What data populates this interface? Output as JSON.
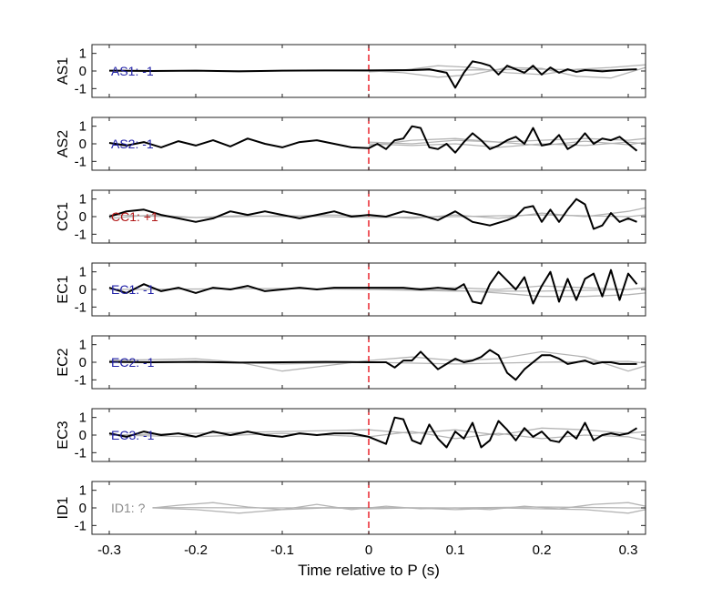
{
  "figure": {
    "xlabel": "Time relative to P (s)",
    "x_ticks": [
      "-0.3",
      "-0.2",
      "-0.1",
      "0",
      "0.1",
      "0.2",
      "0.3"
    ]
  },
  "colors": {
    "trace": "#000000",
    "gray_trace": "#b4b4b4",
    "marker": "#e8141c",
    "label_negative": "#2323a8",
    "label_positive": "#b01414",
    "label_unknown": "#8c8c8c"
  },
  "chart_data": [
    {
      "type": "line",
      "ylabel": "AS1",
      "label": "AS1: -1",
      "polarity": "negative",
      "xlim": [
        -0.32,
        0.32
      ],
      "ylim": [
        -1.5,
        1.5
      ],
      "y_ticks": [
        "1",
        "0",
        "-1"
      ],
      "p_marker_x": 0,
      "series": [
        {
          "x": [
            -0.3,
            -0.25,
            -0.2,
            -0.15,
            -0.1,
            -0.05,
            0,
            0.05,
            0.07,
            0.09,
            0.1,
            0.11,
            0.12,
            0.13,
            0.14,
            0.15,
            0.16,
            0.17,
            0.18,
            0.19,
            0.2,
            0.21,
            0.22,
            0.23,
            0.24,
            0.25,
            0.26,
            0.27,
            0.28,
            0.29,
            0.3,
            0.31
          ],
          "y": [
            0.02,
            0,
            0.02,
            -0.02,
            0.02,
            0.03,
            0.03,
            0.05,
            0.1,
            -0.1,
            -0.95,
            -0.1,
            0.55,
            0.45,
            0.3,
            -0.2,
            0.3,
            0.1,
            -0.1,
            0.3,
            -0.2,
            0.2,
            -0.1,
            0.1,
            -0.05,
            0.05,
            0.02,
            -0.02,
            0.02,
            0.05,
            0.08,
            0.1
          ]
        }
      ],
      "gray_traces": [
        {
          "x": [
            0.0,
            0.04,
            0.08,
            0.12,
            0.16,
            0.2,
            0.24,
            0.28,
            0.32
          ],
          "y": [
            -0.05,
            0.05,
            0.3,
            0.2,
            -0.1,
            -0.2,
            0.1,
            0.2,
            0.35
          ]
        },
        {
          "x": [
            0.0,
            0.04,
            0.08,
            0.12,
            0.16,
            0.2,
            0.24,
            0.28,
            0.32
          ],
          "y": [
            0.02,
            -0.1,
            -0.35,
            -0.2,
            0.2,
            0.15,
            -0.3,
            -0.4,
            0.2
          ]
        },
        {
          "x": [
            -0.3,
            -0.1,
            0.0,
            0.1,
            0.2,
            0.3
          ],
          "y": [
            0.0,
            0.02,
            0.0,
            0.05,
            0.1,
            0.05
          ]
        }
      ]
    },
    {
      "type": "line",
      "ylabel": "AS2",
      "label": "AS2: -1",
      "polarity": "negative",
      "xlim": [
        -0.32,
        0.32
      ],
      "ylim": [
        -1.5,
        1.5
      ],
      "y_ticks": [
        "1",
        "0",
        "-1"
      ],
      "p_marker_x": 0,
      "series": [
        {
          "x": [
            -0.3,
            -0.28,
            -0.26,
            -0.24,
            -0.22,
            -0.2,
            -0.18,
            -0.16,
            -0.14,
            -0.12,
            -0.1,
            -0.08,
            -0.06,
            -0.04,
            -0.02,
            0,
            0.01,
            0.02,
            0.03,
            0.04,
            0.05,
            0.06,
            0.07,
            0.08,
            0.09,
            0.1,
            0.11,
            0.12,
            0.13,
            0.14,
            0.15,
            0.16,
            0.17,
            0.18,
            0.19,
            0.2,
            0.21,
            0.22,
            0.23,
            0.24,
            0.25,
            0.26,
            0.27,
            0.28,
            0.29,
            0.3,
            0.31
          ],
          "y": [
            0.05,
            -0.1,
            0.1,
            -0.2,
            0.15,
            -0.1,
            0.2,
            -0.15,
            0.3,
            0.0,
            -0.2,
            0.1,
            0.2,
            0.0,
            -0.2,
            -0.25,
            0.0,
            -0.3,
            0.2,
            0.3,
            1.0,
            0.9,
            -0.2,
            -0.3,
            0.0,
            -0.5,
            0.1,
            0.6,
            0.2,
            -0.3,
            -0.1,
            0.2,
            0.4,
            0.0,
            0.9,
            -0.1,
            0.0,
            0.5,
            -0.3,
            0.0,
            0.6,
            0.0,
            0.3,
            0.2,
            0.4,
            0.0,
            -0.4
          ]
        }
      ],
      "gray_traces": [
        {
          "x": [
            0.0,
            0.05,
            0.1,
            0.15,
            0.2,
            0.25,
            0.3,
            0.32
          ],
          "y": [
            -0.1,
            0.2,
            0.3,
            0.1,
            0.2,
            0.3,
            0.2,
            0.3
          ]
        },
        {
          "x": [
            0.0,
            0.05,
            0.1,
            0.15,
            0.2,
            0.25,
            0.3,
            0.32
          ],
          "y": [
            0.0,
            -0.1,
            0.0,
            -0.2,
            0.0,
            -0.1,
            0.1,
            0.0
          ]
        },
        {
          "x": [
            0.0,
            0.05,
            0.1,
            0.15,
            0.2,
            0.25,
            0.3,
            0.32
          ],
          "y": [
            0.1,
            0.0,
            0.2,
            0.1,
            -0.1,
            0.15,
            -0.05,
            0.1
          ]
        }
      ]
    },
    {
      "type": "line",
      "ylabel": "CC1",
      "label": "CC1: +1",
      "polarity": "positive",
      "xlim": [
        -0.32,
        0.32
      ],
      "ylim": [
        -1.5,
        1.5
      ],
      "y_ticks": [
        "1",
        "0",
        "-1"
      ],
      "p_marker_x": 0,
      "series": [
        {
          "x": [
            -0.3,
            -0.28,
            -0.26,
            -0.24,
            -0.22,
            -0.2,
            -0.18,
            -0.16,
            -0.14,
            -0.12,
            -0.1,
            -0.08,
            -0.06,
            -0.04,
            -0.02,
            0,
            0.02,
            0.04,
            0.06,
            0.08,
            0.1,
            0.12,
            0.14,
            0.16,
            0.17,
            0.18,
            0.19,
            0.2,
            0.21,
            0.22,
            0.23,
            0.24,
            0.25,
            0.26,
            0.27,
            0.28,
            0.29,
            0.3,
            0.31
          ],
          "y": [
            0.0,
            0.3,
            0.4,
            0.1,
            -0.1,
            -0.3,
            -0.1,
            0.3,
            0.1,
            0.3,
            0.1,
            -0.1,
            0.1,
            0.3,
            0.0,
            0.1,
            0.0,
            0.3,
            0.1,
            -0.2,
            0.3,
            -0.3,
            -0.5,
            -0.2,
            0.0,
            0.5,
            0.6,
            -0.3,
            0.4,
            -0.3,
            0.4,
            1.0,
            0.7,
            -0.7,
            -0.5,
            0.2,
            -0.3,
            -0.1,
            -0.3
          ]
        }
      ],
      "gray_traces": [
        {
          "x": [
            -0.3,
            -0.25,
            -0.2,
            -0.15,
            -0.1,
            -0.05,
            0.0,
            0.05,
            0.1,
            0.15,
            0.2,
            0.25,
            0.3,
            0.32
          ],
          "y": [
            -0.1,
            0.1,
            -0.05,
            0.05,
            0.0,
            0.1,
            0.05,
            -0.1,
            0.1,
            -0.1,
            0.2,
            0.0,
            0.3,
            0.5
          ]
        },
        {
          "x": [
            -0.3,
            -0.2,
            -0.1,
            0.0,
            0.1,
            0.2,
            0.3,
            0.32
          ],
          "y": [
            0.1,
            -0.05,
            0.05,
            -0.05,
            0.0,
            0.1,
            0.0,
            0.1
          ]
        }
      ]
    },
    {
      "type": "line",
      "ylabel": "EC1",
      "label": "EC1: -1",
      "polarity": "negative",
      "xlim": [
        -0.32,
        0.32
      ],
      "ylim": [
        -1.5,
        1.5
      ],
      "y_ticks": [
        "1",
        "0",
        "-1"
      ],
      "p_marker_x": 0,
      "series": [
        {
          "x": [
            -0.3,
            -0.28,
            -0.26,
            -0.24,
            -0.22,
            -0.2,
            -0.18,
            -0.16,
            -0.14,
            -0.12,
            -0.1,
            -0.08,
            -0.06,
            -0.04,
            -0.02,
            0,
            0.02,
            0.04,
            0.06,
            0.08,
            0.1,
            0.11,
            0.12,
            0.13,
            0.14,
            0.15,
            0.16,
            0.17,
            0.18,
            0.19,
            0.2,
            0.21,
            0.22,
            0.23,
            0.24,
            0.25,
            0.26,
            0.27,
            0.28,
            0.29,
            0.3,
            0.31
          ],
          "y": [
            0.1,
            -0.2,
            0.3,
            -0.1,
            0.1,
            -0.2,
            0.1,
            0.0,
            0.2,
            -0.1,
            0.0,
            0.1,
            0.0,
            0.1,
            0.1,
            0.1,
            0.1,
            0.1,
            0.0,
            0.1,
            0.0,
            0.3,
            -0.7,
            -0.8,
            0.3,
            1.0,
            0.5,
            0.0,
            0.7,
            -0.8,
            0.2,
            1.0,
            -0.7,
            0.6,
            -0.6,
            0.6,
            0.9,
            -0.4,
            1.1,
            -0.6,
            0.9,
            0.3
          ]
        }
      ],
      "gray_traces": [
        {
          "x": [
            0.0,
            0.1,
            0.15,
            0.2,
            0.25,
            0.3,
            0.32
          ],
          "y": [
            0.05,
            -0.05,
            -0.2,
            -0.4,
            -0.4,
            -0.3,
            -0.2
          ]
        },
        {
          "x": [
            0.0,
            0.1,
            0.15,
            0.2,
            0.25,
            0.3,
            0.32
          ],
          "y": [
            0.0,
            0.1,
            0.0,
            0.2,
            0.1,
            0.0,
            0.1
          ]
        },
        {
          "x": [
            -0.3,
            -0.1,
            0.0,
            0.1,
            0.2,
            0.3,
            0.32
          ],
          "y": [
            0.0,
            0.05,
            0.0,
            -0.1,
            -0.1,
            0.0,
            0.1
          ]
        }
      ]
    },
    {
      "type": "line",
      "ylabel": "EC2",
      "label": "EC2: -1",
      "polarity": "negative",
      "xlim": [
        -0.32,
        0.32
      ],
      "ylim": [
        -1.5,
        1.5
      ],
      "y_ticks": [
        "1",
        "0",
        "-1"
      ],
      "p_marker_x": 0,
      "series": [
        {
          "x": [
            -0.3,
            -0.25,
            -0.2,
            -0.15,
            -0.1,
            -0.05,
            0,
            0.02,
            0.03,
            0.04,
            0.05,
            0.06,
            0.07,
            0.08,
            0.09,
            0.1,
            0.11,
            0.12,
            0.13,
            0.14,
            0.15,
            0.16,
            0.17,
            0.18,
            0.19,
            0.2,
            0.21,
            0.22,
            0.23,
            0.24,
            0.25,
            0.26,
            0.27,
            0.28,
            0.29,
            0.3,
            0.31
          ],
          "y": [
            0.02,
            0.0,
            0.02,
            -0.02,
            0.0,
            0.02,
            0.0,
            0.0,
            -0.3,
            0.1,
            0.1,
            0.6,
            0.1,
            -0.4,
            -0.1,
            0.2,
            0.0,
            0.1,
            0.3,
            0.7,
            0.4,
            -0.6,
            -1.0,
            -0.4,
            0.0,
            0.4,
            0.4,
            0.2,
            -0.1,
            0.0,
            0.1,
            -0.1,
            0.0,
            0.0,
            -0.1,
            -0.1,
            -0.1
          ]
        }
      ],
      "gray_traces": [
        {
          "x": [
            -0.3,
            -0.2,
            -0.15,
            -0.1,
            -0.05,
            0.0,
            0.05,
            0.1,
            0.15,
            0.2,
            0.25,
            0.3,
            0.32
          ],
          "y": [
            0.1,
            0.2,
            0.0,
            -0.5,
            -0.2,
            0.1,
            0.3,
            0.1,
            0.2,
            0.6,
            0.3,
            -0.5,
            -0.2
          ]
        },
        {
          "x": [
            -0.3,
            -0.2,
            -0.1,
            0.0,
            0.1,
            0.2,
            0.3,
            0.32
          ],
          "y": [
            0.0,
            0.05,
            -0.1,
            0.0,
            -0.1,
            0.0,
            0.05,
            -0.05
          ]
        }
      ]
    },
    {
      "type": "line",
      "ylabel": "EC3",
      "label": "EC3: -1",
      "polarity": "negative",
      "xlim": [
        -0.32,
        0.32
      ],
      "ylim": [
        -1.5,
        1.5
      ],
      "y_ticks": [
        "1",
        "0",
        "-1"
      ],
      "p_marker_x": 0,
      "series": [
        {
          "x": [
            -0.3,
            -0.28,
            -0.26,
            -0.24,
            -0.22,
            -0.2,
            -0.18,
            -0.16,
            -0.14,
            -0.12,
            -0.1,
            -0.08,
            -0.06,
            -0.04,
            -0.02,
            0,
            0.02,
            0.03,
            0.04,
            0.05,
            0.06,
            0.07,
            0.08,
            0.09,
            0.1,
            0.11,
            0.12,
            0.13,
            0.14,
            0.15,
            0.16,
            0.17,
            0.18,
            0.19,
            0.2,
            0.21,
            0.22,
            0.23,
            0.24,
            0.25,
            0.26,
            0.27,
            0.28,
            0.29,
            0.3,
            0.31
          ],
          "y": [
            0.1,
            -0.1,
            0.2,
            0.0,
            0.1,
            -0.1,
            0.2,
            0.0,
            0.2,
            0.0,
            -0.1,
            0.1,
            0.0,
            0.1,
            0.1,
            -0.1,
            -0.5,
            1.0,
            0.9,
            -0.3,
            -0.5,
            0.6,
            -0.2,
            -0.7,
            0.2,
            -0.2,
            0.7,
            -0.7,
            -0.3,
            0.8,
            0.3,
            -0.3,
            0.4,
            -0.1,
            0.2,
            -0.3,
            -0.4,
            0.2,
            -0.2,
            0.7,
            -0.3,
            0.0,
            0.1,
            0.0,
            0.1,
            0.4
          ]
        }
      ],
      "gray_traces": [
        {
          "x": [
            -0.3,
            -0.2,
            -0.1,
            0.0,
            0.05,
            0.1,
            0.15,
            0.2,
            0.25,
            0.3,
            0.32
          ],
          "y": [
            0.0,
            0.1,
            0.2,
            0.3,
            0.1,
            0.3,
            0.0,
            0.4,
            0.3,
            0.1,
            0.2
          ]
        },
        {
          "x": [
            -0.3,
            -0.2,
            -0.1,
            0.0,
            0.05,
            0.1,
            0.15,
            0.2,
            0.25,
            0.3,
            0.32
          ],
          "y": [
            0.0,
            -0.1,
            0.1,
            -0.1,
            0.2,
            -0.2,
            0.1,
            -0.2,
            0.0,
            -0.1,
            -0.3
          ]
        }
      ]
    },
    {
      "type": "line",
      "ylabel": "ID1",
      "label": "ID1: ?",
      "polarity": "unknown",
      "xlim": [
        -0.32,
        0.32
      ],
      "ylim": [
        -1.5,
        1.5
      ],
      "y_ticks": [
        "1",
        "0",
        "-1"
      ],
      "p_marker_x": 0,
      "series": [],
      "gray_traces": [
        {
          "x": [
            -0.25,
            -0.22,
            -0.18,
            -0.14,
            -0.1,
            -0.06,
            -0.02,
            0.02,
            0.06,
            0.1,
            0.14,
            0.18,
            0.22,
            0.26,
            0.3,
            0.32
          ],
          "y": [
            0.0,
            0.15,
            0.3,
            0.05,
            -0.1,
            0.2,
            -0.1,
            0.1,
            -0.05,
            0.0,
            -0.1,
            0.1,
            -0.05,
            0.2,
            0.3,
            0.1
          ]
        },
        {
          "x": [
            -0.25,
            -0.2,
            -0.15,
            -0.1,
            -0.05,
            0.0,
            0.05,
            0.1,
            0.15,
            0.2,
            0.25,
            0.3,
            0.32
          ],
          "y": [
            0.0,
            -0.1,
            -0.3,
            -0.1,
            0.0,
            -0.05,
            0.0,
            -0.1,
            0.0,
            -0.05,
            -0.1,
            -0.3,
            -0.1
          ]
        },
        {
          "x": [
            -0.25,
            -0.1,
            0.0,
            0.1,
            0.2,
            0.3,
            0.32
          ],
          "y": [
            0.02,
            0.0,
            0.02,
            0.0,
            0.05,
            0.0,
            0.0
          ]
        }
      ]
    }
  ]
}
